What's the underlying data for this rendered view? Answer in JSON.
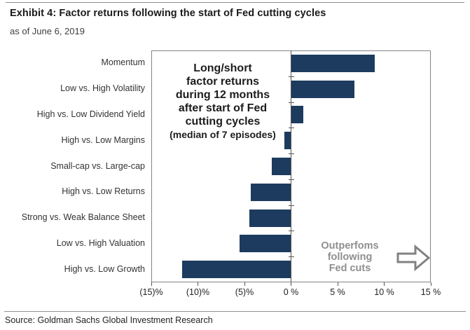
{
  "header": {
    "title": "Exhibit 4: Factor returns following the start of Fed cutting cycles",
    "subtitle": "as of June 6, 2019"
  },
  "footer": {
    "source": "Source: Goldman Sachs Global Investment Research"
  },
  "annotations": {
    "center_note_lines": {
      "0": "Long/short",
      "1": "factor returns",
      "2": "during 12 months",
      "3": "after start of Fed",
      "4": "cutting cycles",
      "5": "(median of 7 episodes)"
    },
    "outperform_note_lines": {
      "0": "Outperfoms",
      "1": "following",
      "2": "Fed cuts"
    },
    "arrow_icon": "arrow-right-icon"
  },
  "colors": {
    "bar": "#1d3b5f",
    "plot_border": "#848484",
    "axis_line": "#555555",
    "gray_note": "#8f8f8f"
  },
  "chart_data": {
    "type": "bar",
    "orientation": "horizontal",
    "title": "Exhibit 4: Factor returns following the start of Fed cutting cycles",
    "subtitle": "as of June 6, 2019",
    "categories": [
      "Momentum",
      "Low vs. High Volatility",
      "High vs. Low Dividend Yield",
      "High vs. Low Margins",
      "Small-cap vs. Large-cap",
      "High vs. Low Returns",
      "Strong vs. Weak Balance Sheet",
      "Low vs. High Valuation",
      "High vs. Low Growth"
    ],
    "values": [
      9.0,
      6.8,
      1.3,
      -0.7,
      -2.1,
      -4.3,
      -4.5,
      -5.5,
      -11.7
    ],
    "unit": "%",
    "xlim": [
      -15,
      15
    ],
    "x_ticks": [
      -15,
      -10,
      -5,
      0,
      5,
      10,
      15
    ],
    "x_tick_labels": [
      "(15)%",
      "(10)%",
      "(5)%",
      "0 %",
      "5 %",
      "10 %",
      "15 %"
    ],
    "grid": false,
    "legend": "none"
  }
}
